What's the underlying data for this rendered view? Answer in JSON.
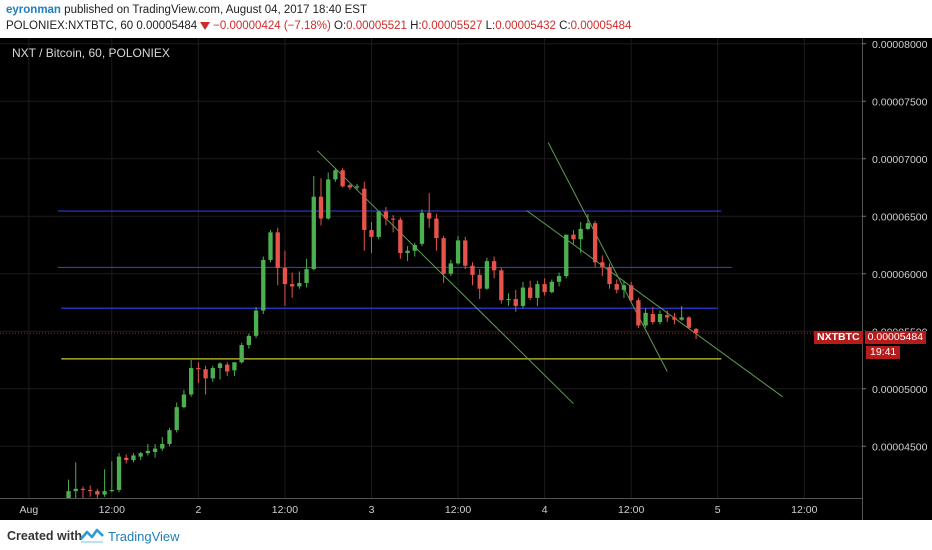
{
  "header": {
    "author": "eyronman",
    "published_text": "published on TradingView.com, August 04, 2017 18:40 EST",
    "symbol": "POLONIEX:NXTBTC, 60",
    "last": "0.00005484",
    "change": "−0.00000424 (−7.18%)",
    "o_label": "O:",
    "o": "0.00005521",
    "h_label": "H:",
    "h": "0.00005527",
    "l_label": "L:",
    "l": "0.00005432",
    "c_label": "C:",
    "c": "0.00005484"
  },
  "legend": "NXT / Bitcoin, 60, POLONIEX",
  "price_tag": {
    "symbol": "NXTBTC",
    "value": "0.00005484",
    "countdown": "19:41"
  },
  "footer": {
    "created_with": "Created with",
    "brand": "TradingView"
  },
  "colors": {
    "background": "#000000",
    "up": "#4caf50",
    "down": "#e5534b",
    "channel": "#2a3bd8",
    "support": "#c8c830",
    "trendline": "#5f9c52",
    "last_price": "#b71c1c"
  },
  "chart_data": {
    "type": "candlestick",
    "title": "NXT / Bitcoin, 60, POLONIEX",
    "ylim": [
      4.05e-05,
      8.05e-05
    ],
    "y_ticks": [
      "0.00008000",
      "0.00007500",
      "0.00007000",
      "0.00006500",
      "0.00006000",
      "0.00005500",
      "0.00005000",
      "0.00004500"
    ],
    "y_tick_values": [
      8e-05,
      7.5e-05,
      7e-05,
      6.5e-05,
      6e-05,
      5.5e-05,
      5e-05,
      4.5e-05
    ],
    "x_ticks": [
      {
        "label": "Aug",
        "t": -11
      },
      {
        "label": "12:00",
        "t": 12
      },
      {
        "label": "2",
        "t": 36
      },
      {
        "label": "12:00",
        "t": 60
      },
      {
        "label": "3",
        "t": 84
      },
      {
        "label": "12:00",
        "t": 108
      },
      {
        "label": "4",
        "t": 132
      },
      {
        "label": "12:00",
        "t": 156
      },
      {
        "label": "5",
        "t": 180
      },
      {
        "label": "12:00",
        "t": 204
      }
    ],
    "x_range_hours": [
      -19,
      220
    ],
    "last_price": 5.484e-05,
    "horizontal_lines": [
      {
        "name": "channel-top",
        "y": 6.545e-05,
        "x0": -3,
        "x1": 181,
        "color": "blue"
      },
      {
        "name": "channel-mid",
        "y": 6.055e-05,
        "x0": -3,
        "x1": 184,
        "color": "blue"
      },
      {
        "name": "channel-low",
        "y": 5.7e-05,
        "x0": -2,
        "x1": 180,
        "color": "blue"
      },
      {
        "name": "support",
        "y": 5.26e-05,
        "x0": -2,
        "x1": 181,
        "color": "yellow"
      }
    ],
    "trend_lines": [
      {
        "name": "trend-1",
        "x0": 69,
        "y0": 7.07e-05,
        "x1": 140,
        "y1": 4.87e-05
      },
      {
        "name": "trend-2",
        "x0": 133,
        "y0": 7.14e-05,
        "x1": 166,
        "y1": 5.15e-05
      },
      {
        "name": "trend-3",
        "x0": 127,
        "y0": 6.55e-05,
        "x1": 198,
        "y1": 4.93e-05
      }
    ],
    "candles": [
      {
        "t": 0,
        "o": 4.05e-05,
        "h": 4.21e-05,
        "l": 4.05e-05,
        "c": 4.11e-05
      },
      {
        "t": 2,
        "o": 4.11e-05,
        "h": 4.36e-05,
        "l": 4.05e-05,
        "c": 4.13e-05
      },
      {
        "t": 4,
        "o": 4.13e-05,
        "h": 4.15e-05,
        "l": 4.05e-05,
        "c": 4.12e-05
      },
      {
        "t": 6,
        "o": 4.12e-05,
        "h": 4.16e-05,
        "l": 4.06e-05,
        "c": 4.11e-05
      },
      {
        "t": 8,
        "o": 4.11e-05,
        "h": 4.13e-05,
        "l": 4.05e-05,
        "c": 4.08e-05
      },
      {
        "t": 10,
        "o": 4.08e-05,
        "h": 4.3e-05,
        "l": 4.06e-05,
        "c": 4.11e-05
      },
      {
        "t": 12,
        "o": 4.11e-05,
        "h": 4.37e-05,
        "l": 4.1e-05,
        "c": 4.12e-05
      },
      {
        "t": 14,
        "o": 4.12e-05,
        "h": 4.44e-05,
        "l": 4.1e-05,
        "c": 4.41e-05
      },
      {
        "t": 16,
        "o": 4.4e-05,
        "h": 4.43e-05,
        "l": 4.35e-05,
        "c": 4.38e-05
      },
      {
        "t": 18,
        "o": 4.38e-05,
        "h": 4.44e-05,
        "l": 4.36e-05,
        "c": 4.42e-05
      },
      {
        "t": 20,
        "o": 4.41e-05,
        "h": 4.45e-05,
        "l": 4.38e-05,
        "c": 4.44e-05
      },
      {
        "t": 22,
        "o": 4.44e-05,
        "h": 4.52e-05,
        "l": 4.42e-05,
        "c": 4.46e-05
      },
      {
        "t": 24,
        "o": 4.45e-05,
        "h": 4.52e-05,
        "l": 4.4e-05,
        "c": 4.48e-05
      },
      {
        "t": 26,
        "o": 4.48e-05,
        "h": 4.58e-05,
        "l": 4.46e-05,
        "c": 4.52e-05
      },
      {
        "t": 28,
        "o": 4.52e-05,
        "h": 4.66e-05,
        "l": 4.5e-05,
        "c": 4.64e-05
      },
      {
        "t": 30,
        "o": 4.64e-05,
        "h": 4.88e-05,
        "l": 4.62e-05,
        "c": 4.84e-05
      },
      {
        "t": 32,
        "o": 4.84e-05,
        "h": 4.99e-05,
        "l": 4.83e-05,
        "c": 4.95e-05
      },
      {
        "t": 34,
        "o": 4.95e-05,
        "h": 5.25e-05,
        "l": 4.93e-05,
        "c": 5.18e-05
      },
      {
        "t": 36,
        "o": 5.18e-05,
        "h": 5.23e-05,
        "l": 5.05e-05,
        "c": 5.17e-05
      },
      {
        "t": 38,
        "o": 5.17e-05,
        "h": 5.2e-05,
        "l": 4.95e-05,
        "c": 5.09e-05
      },
      {
        "t": 40,
        "o": 5.09e-05,
        "h": 5.2e-05,
        "l": 5.06e-05,
        "c": 5.18e-05
      },
      {
        "t": 42,
        "o": 5.18e-05,
        "h": 5.23e-05,
        "l": 5.08e-05,
        "c": 5.22e-05
      },
      {
        "t": 44,
        "o": 5.21e-05,
        "h": 5.23e-05,
        "l": 5.11e-05,
        "c": 5.15e-05
      },
      {
        "t": 46,
        "o": 5.16e-05,
        "h": 5.23e-05,
        "l": 5.11e-05,
        "c": 5.23e-05
      },
      {
        "t": 48,
        "o": 5.23e-05,
        "h": 5.4e-05,
        "l": 5.22e-05,
        "c": 5.38e-05
      },
      {
        "t": 50,
        "o": 5.38e-05,
        "h": 5.48e-05,
        "l": 5.35e-05,
        "c": 5.46e-05
      },
      {
        "t": 52,
        "o": 5.46e-05,
        "h": 5.71e-05,
        "l": 5.44e-05,
        "c": 5.68e-05
      },
      {
        "t": 54,
        "o": 5.68e-05,
        "h": 6.15e-05,
        "l": 5.65e-05,
        "c": 6.12e-05
      },
      {
        "t": 56,
        "o": 6.12e-05,
        "h": 6.38e-05,
        "l": 6.1e-05,
        "c": 6.36e-05
      },
      {
        "t": 58,
        "o": 6.36e-05,
        "h": 6.4e-05,
        "l": 5.9e-05,
        "c": 6.05e-05
      },
      {
        "t": 60,
        "o": 6.05e-05,
        "h": 6.2e-05,
        "l": 5.72e-05,
        "c": 5.91e-05
      },
      {
        "t": 62,
        "o": 5.91e-05,
        "h": 6.01e-05,
        "l": 5.79e-05,
        "c": 5.89e-05
      },
      {
        "t": 64,
        "o": 5.89e-05,
        "h": 6.02e-05,
        "l": 5.87e-05,
        "c": 5.92e-05
      },
      {
        "t": 66,
        "o": 5.92e-05,
        "h": 6.13e-05,
        "l": 5.88e-05,
        "c": 6.04e-05
      },
      {
        "t": 68,
        "o": 6.04e-05,
        "h": 6.85e-05,
        "l": 6.03e-05,
        "c": 6.67e-05
      },
      {
        "t": 70,
        "o": 6.67e-05,
        "h": 6.83e-05,
        "l": 6.42e-05,
        "c": 6.48e-05
      },
      {
        "t": 72,
        "o": 6.48e-05,
        "h": 6.88e-05,
        "l": 6.47e-05,
        "c": 6.82e-05
      },
      {
        "t": 74,
        "o": 6.82e-05,
        "h": 6.92e-05,
        "l": 6.8e-05,
        "c": 6.9e-05
      },
      {
        "t": 76,
        "o": 6.9e-05,
        "h": 6.92e-05,
        "l": 6.75e-05,
        "c": 6.76e-05
      },
      {
        "t": 78,
        "o": 6.77e-05,
        "h": 6.78e-05,
        "l": 6.73e-05,
        "c": 6.75e-05
      },
      {
        "t": 80,
        "o": 6.75e-05,
        "h": 6.78e-05,
        "l": 6.73e-05,
        "c": 6.76e-05
      },
      {
        "t": 82,
        "o": 6.74e-05,
        "h": 6.8e-05,
        "l": 6.2e-05,
        "c": 6.38e-05
      },
      {
        "t": 84,
        "o": 6.38e-05,
        "h": 6.45e-05,
        "l": 6.18e-05,
        "c": 6.32e-05
      },
      {
        "t": 86,
        "o": 6.32e-05,
        "h": 6.55e-05,
        "l": 6.3e-05,
        "c": 6.54e-05
      },
      {
        "t": 88,
        "o": 6.54e-05,
        "h": 6.58e-05,
        "l": 6.42e-05,
        "c": 6.48e-05
      },
      {
        "t": 90,
        "o": 6.48e-05,
        "h": 6.51e-05,
        "l": 6.36e-05,
        "c": 6.47e-05
      },
      {
        "t": 92,
        "o": 6.47e-05,
        "h": 6.49e-05,
        "l": 6.13e-05,
        "c": 6.18e-05
      },
      {
        "t": 94,
        "o": 6.18e-05,
        "h": 6.24e-05,
        "l": 6.11e-05,
        "c": 6.2e-05
      },
      {
        "t": 96,
        "o": 6.2e-05,
        "h": 6.27e-05,
        "l": 6.15e-05,
        "c": 6.25e-05
      },
      {
        "t": 98,
        "o": 6.26e-05,
        "h": 6.56e-05,
        "l": 6.24e-05,
        "c": 6.53e-05
      },
      {
        "t": 100,
        "o": 6.53e-05,
        "h": 6.7e-05,
        "l": 6.4e-05,
        "c": 6.48e-05
      },
      {
        "t": 102,
        "o": 6.48e-05,
        "h": 6.52e-05,
        "l": 6.2e-05,
        "c": 6.31e-05
      },
      {
        "t": 104,
        "o": 6.31e-05,
        "h": 6.33e-05,
        "l": 5.92e-05,
        "c": 6e-05
      },
      {
        "t": 106,
        "o": 6e-05,
        "h": 6.12e-05,
        "l": 5.98e-05,
        "c": 6.09e-05
      },
      {
        "t": 108,
        "o": 6.09e-05,
        "h": 6.33e-05,
        "l": 6.08e-05,
        "c": 6.29e-05
      },
      {
        "t": 110,
        "o": 6.29e-05,
        "h": 6.32e-05,
        "l": 6.04e-05,
        "c": 6.07e-05
      },
      {
        "t": 112,
        "o": 6.07e-05,
        "h": 6.1e-05,
        "l": 5.9e-05,
        "c": 5.99e-05
      },
      {
        "t": 114,
        "o": 5.99e-05,
        "h": 6.04e-05,
        "l": 5.78e-05,
        "c": 5.87e-05
      },
      {
        "t": 116,
        "o": 5.87e-05,
        "h": 6.14e-05,
        "l": 5.86e-05,
        "c": 6.11e-05
      },
      {
        "t": 118,
        "o": 6.11e-05,
        "h": 6.15e-05,
        "l": 5.96e-05,
        "c": 6.03e-05
      },
      {
        "t": 120,
        "o": 6.03e-05,
        "h": 6.05e-05,
        "l": 5.74e-05,
        "c": 5.77e-05
      },
      {
        "t": 122,
        "o": 5.77e-05,
        "h": 5.83e-05,
        "l": 5.72e-05,
        "c": 5.78e-05
      },
      {
        "t": 124,
        "o": 5.78e-05,
        "h": 5.86e-05,
        "l": 5.67e-05,
        "c": 5.72e-05
      },
      {
        "t": 126,
        "o": 5.72e-05,
        "h": 5.93e-05,
        "l": 5.7e-05,
        "c": 5.88e-05
      },
      {
        "t": 128,
        "o": 5.88e-05,
        "h": 5.94e-05,
        "l": 5.77e-05,
        "c": 5.79e-05
      },
      {
        "t": 130,
        "o": 5.79e-05,
        "h": 5.94e-05,
        "l": 5.72e-05,
        "c": 5.91e-05
      },
      {
        "t": 132,
        "o": 5.91e-05,
        "h": 5.96e-05,
        "l": 5.81e-05,
        "c": 5.84e-05
      },
      {
        "t": 134,
        "o": 5.84e-05,
        "h": 5.95e-05,
        "l": 5.83e-05,
        "c": 5.93e-05
      },
      {
        "t": 136,
        "o": 5.93e-05,
        "h": 6.01e-05,
        "l": 5.89e-05,
        "c": 5.98e-05
      },
      {
        "t": 138,
        "o": 5.98e-05,
        "h": 6.33e-05,
        "l": 5.96e-05,
        "c": 6.34e-05
      },
      {
        "t": 140,
        "o": 6.34e-05,
        "h": 6.38e-05,
        "l": 6.26e-05,
        "c": 6.3e-05
      },
      {
        "t": 142,
        "o": 6.3e-05,
        "h": 6.45e-05,
        "l": 6.18e-05,
        "c": 6.39e-05
      },
      {
        "t": 144,
        "o": 6.39e-05,
        "h": 6.52e-05,
        "l": 6.38e-05,
        "c": 6.44e-05
      },
      {
        "t": 146,
        "o": 6.44e-05,
        "h": 6.46e-05,
        "l": 6.06e-05,
        "c": 6.1e-05
      },
      {
        "t": 148,
        "o": 6.1e-05,
        "h": 6.16e-05,
        "l": 5.98e-05,
        "c": 6.06e-05
      },
      {
        "t": 150,
        "o": 6.06e-05,
        "h": 6.09e-05,
        "l": 5.87e-05,
        "c": 5.91e-05
      },
      {
        "t": 152,
        "o": 5.91e-05,
        "h": 5.95e-05,
        "l": 5.83e-05,
        "c": 5.86e-05
      },
      {
        "t": 154,
        "o": 5.86e-05,
        "h": 5.94e-05,
        "l": 5.79e-05,
        "c": 5.9e-05
      },
      {
        "t": 156,
        "o": 5.9e-05,
        "h": 5.93e-05,
        "l": 5.75e-05,
        "c": 5.77e-05
      },
      {
        "t": 158,
        "o": 5.77e-05,
        "h": 5.79e-05,
        "l": 5.53e-05,
        "c": 5.55e-05
      },
      {
        "t": 160,
        "o": 5.55e-05,
        "h": 5.7e-05,
        "l": 5.53e-05,
        "c": 5.66e-05
      },
      {
        "t": 162,
        "o": 5.65e-05,
        "h": 5.71e-05,
        "l": 5.56e-05,
        "c": 5.58e-05
      },
      {
        "t": 164,
        "o": 5.58e-05,
        "h": 5.68e-05,
        "l": 5.56e-05,
        "c": 5.65e-05
      },
      {
        "t": 166,
        "o": 5.64e-05,
        "h": 5.68e-05,
        "l": 5.58e-05,
        "c": 5.62e-05
      },
      {
        "t": 168,
        "o": 5.62e-05,
        "h": 5.66e-05,
        "l": 5.56e-05,
        "c": 5.6e-05
      },
      {
        "t": 170,
        "o": 5.6e-05,
        "h": 5.72e-05,
        "l": 5.59e-05,
        "c": 5.62e-05
      },
      {
        "t": 172,
        "o": 5.62e-05,
        "h": 5.63e-05,
        "l": 5.52e-05,
        "c": 5.53e-05
      },
      {
        "t": 174,
        "o": 5.521e-05,
        "h": 5.527e-05,
        "l": 5.432e-05,
        "c": 5.484e-05
      }
    ]
  }
}
